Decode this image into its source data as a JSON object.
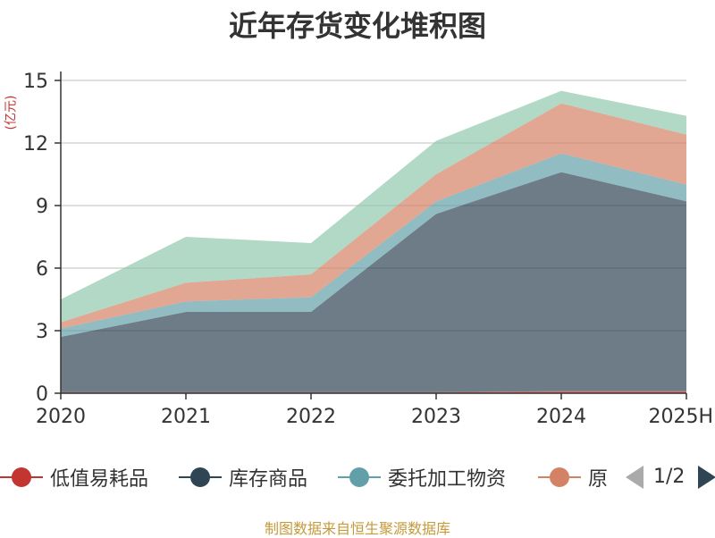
{
  "chart_data": {
    "type": "area",
    "title": "近年存货变化堆积图",
    "unit_label": "(亿元)",
    "x": [
      "2020",
      "2021",
      "2022",
      "2023",
      "2024",
      "2025H"
    ],
    "y_ticks": [
      "0",
      "3",
      "6",
      "9",
      "12",
      "15"
    ],
    "ylim": [
      0,
      15
    ],
    "stacked": true,
    "grid": true,
    "legend_position": "bottom",
    "series": [
      {
        "name": "低值易耗品",
        "color": "#c23531",
        "values": [
          0.05,
          0.05,
          0.05,
          0.05,
          0.1,
          0.1
        ]
      },
      {
        "name": "库存商品",
        "color": "#2f4554",
        "values": [
          2.65,
          3.85,
          3.85,
          8.55,
          10.5,
          9.1
        ]
      },
      {
        "name": "委托加工物资",
        "color": "#61a0a8",
        "values": [
          0.4,
          0.5,
          0.7,
          0.6,
          0.9,
          0.8
        ]
      },
      {
        "name": "原",
        "color": "#d48265",
        "values": [
          0.3,
          0.9,
          1.1,
          1.3,
          2.4,
          2.4
        ]
      },
      {
        "name": "",
        "color": "#91c7ae",
        "values": [
          1.1,
          2.2,
          1.5,
          1.6,
          0.6,
          0.9
        ]
      }
    ]
  },
  "legend": {
    "items": [
      "低值易耗品",
      "库存商品",
      "委托加工物资",
      "原"
    ],
    "page_text": "1/2"
  },
  "source": "制图数据来自恒生聚源数据库"
}
